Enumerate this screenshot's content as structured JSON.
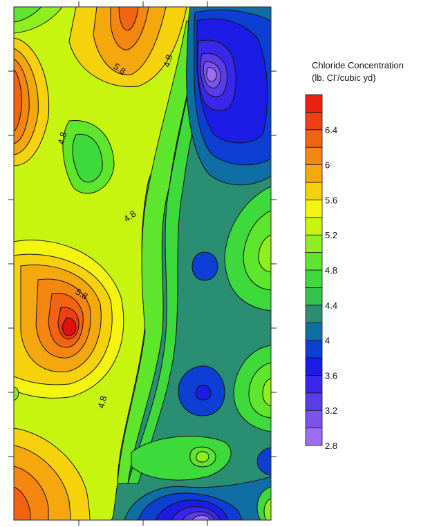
{
  "chart_data": {
    "type": "heatmap",
    "subtype": "filled-contour",
    "title": "Chloride Concentration",
    "subtitle_prefix": "(lb. Cl",
    "subtitle_superscript": "-",
    "subtitle_suffix": "/cubic yd)",
    "legend_placement": "right",
    "grid": false,
    "color_scale": {
      "levels": [
        2.8,
        3.0,
        3.2,
        3.4,
        3.6,
        3.8,
        4.0,
        4.2,
        4.4,
        4.6,
        4.8,
        5.0,
        5.2,
        5.4,
        5.6,
        5.8,
        6.0,
        6.2,
        6.4,
        6.6,
        6.8
      ],
      "colors": [
        "#9d6cf4",
        "#7b53ef",
        "#5a3ced",
        "#3a27ea",
        "#1c1ce6",
        "#0d3fd4",
        "#0f6ea4",
        "#2a8f72",
        "#33c24a",
        "#3ed93a",
        "#5ee62c",
        "#8fee1f",
        "#c7f50f",
        "#f3f511",
        "#f5d20c",
        "#f5a80d",
        "#f58610",
        "#f36411",
        "#f03f12",
        "#eb2113",
        "#e31010"
      ],
      "tick_labels": [
        "2.8",
        "3.2",
        "3.6",
        "4",
        "4.4",
        "4.8",
        "5.2",
        "5.6",
        "6",
        "6.4"
      ]
    },
    "contour_labels": [
      "5.8",
      "4.8",
      "4.8",
      "4.8",
      "5.8",
      "4.8"
    ],
    "features": [
      {
        "name": "high-top-center",
        "value": 6.2
      },
      {
        "name": "high-upper-left-edge",
        "value": 6.0
      },
      {
        "name": "low-upper-right",
        "value": 2.8
      },
      {
        "name": "high-mid-left",
        "value": 6.8
      },
      {
        "name": "low-bottom-center",
        "value": 2.9
      },
      {
        "name": "low-mid-center",
        "value": 3.7
      },
      {
        "name": "low-lower-center",
        "value": 3.6
      },
      {
        "name": "high-bottom-left",
        "value": 5.9
      }
    ]
  }
}
